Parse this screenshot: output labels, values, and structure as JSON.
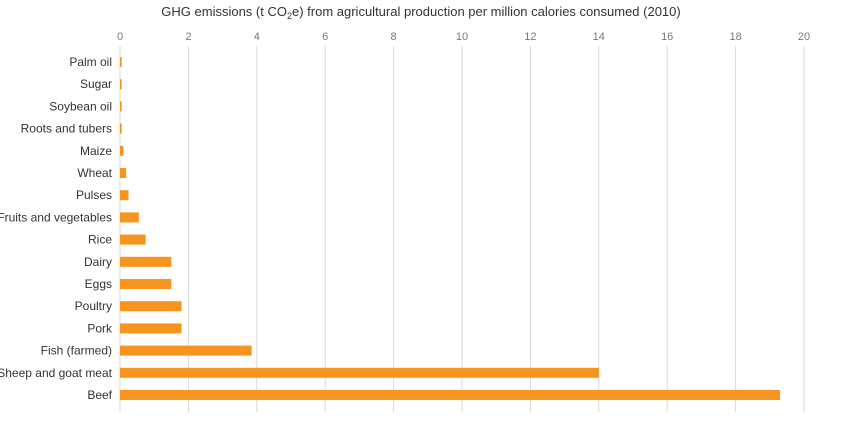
{
  "title": {
    "prefix": "GHG emissions (t CO",
    "subscript": "2",
    "suffix": "e) from agricultural production per million calories consumed (2010)"
  },
  "chart_data": {
    "type": "bar",
    "orientation": "horizontal",
    "categories": [
      "Palm oil",
      "Sugar",
      "Soybean oil",
      "Roots and tubers",
      "Maize",
      "Wheat",
      "Pulses",
      "Fruits and vegetables",
      "Rice",
      "Dairy",
      "Eggs",
      "Poultry",
      "Pork",
      "Fish (farmed)",
      "Sheep and goat meat",
      "Beef"
    ],
    "values": [
      0.05,
      0.05,
      0.05,
      0.05,
      0.1,
      0.18,
      0.25,
      0.55,
      0.75,
      1.5,
      1.5,
      1.8,
      1.8,
      3.85,
      14.0,
      19.3
    ],
    "xlim": [
      0,
      20
    ],
    "xticks": [
      0,
      2,
      4,
      6,
      8,
      10,
      12,
      14,
      16,
      18,
      20
    ],
    "xaxis_position": "top",
    "grid": true,
    "colors": {
      "bar": "#F7941D",
      "grid": "#d9d9d9",
      "tick_text": "#777777",
      "label_text": "#333333"
    }
  }
}
